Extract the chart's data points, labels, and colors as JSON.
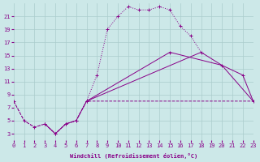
{
  "background_color": "#cce8e8",
  "grid_color": "#aacccc",
  "line_color": "#880088",
  "xlabel": "Windchill (Refroidissement éolien,°C)",
  "xlim": [
    0,
    23
  ],
  "ylim": [
    2,
    23
  ],
  "yticks": [
    3,
    5,
    7,
    9,
    11,
    13,
    15,
    17,
    19,
    21
  ],
  "xticks": [
    0,
    1,
    2,
    3,
    4,
    5,
    6,
    7,
    8,
    9,
    10,
    11,
    12,
    13,
    14,
    15,
    16,
    17,
    18,
    19,
    20,
    21,
    22,
    23
  ],
  "line1_x": [
    0,
    1,
    2,
    3,
    4,
    5,
    6,
    7,
    8,
    9,
    10,
    11,
    12,
    13,
    14,
    15,
    16,
    17,
    18
  ],
  "line1_y": [
    8,
    5,
    4,
    4.5,
    3,
    4.5,
    5,
    8,
    12,
    19,
    21,
    22.5,
    22,
    22,
    22.5,
    22,
    19.5,
    18,
    15.5
  ],
  "line2_x": [
    3,
    4,
    5,
    6,
    7,
    15,
    20,
    22,
    23
  ],
  "line2_y": [
    4.5,
    3,
    4.5,
    5,
    8,
    15.5,
    13.5,
    12,
    8
  ],
  "line3_x": [
    0,
    1,
    2,
    3,
    4,
    5,
    6,
    7,
    22,
    23
  ],
  "line3_y": [
    8,
    5,
    4,
    4.5,
    3,
    4.5,
    5,
    8,
    8,
    8
  ],
  "line4_x": [
    7,
    18,
    20,
    23
  ],
  "line4_y": [
    8,
    15.5,
    13.5,
    8
  ]
}
